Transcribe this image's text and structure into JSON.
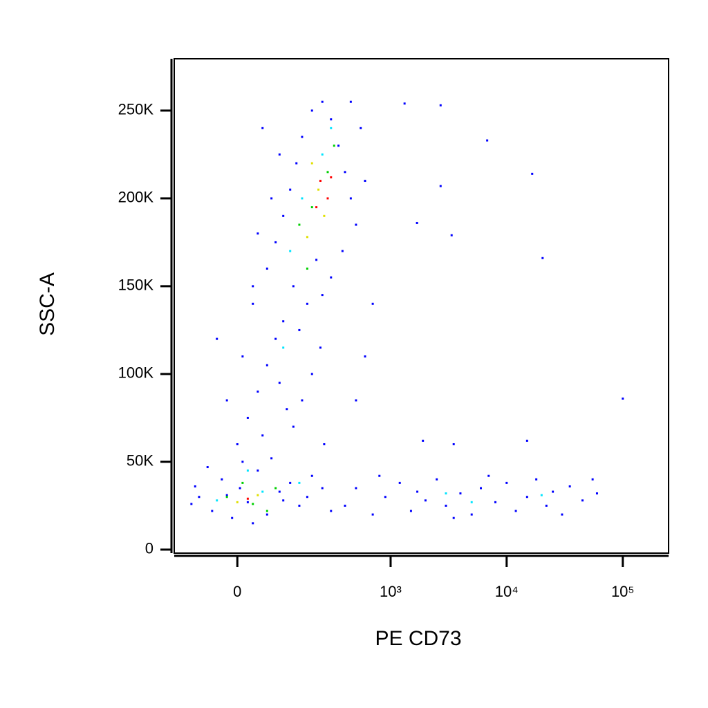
{
  "chart_data": {
    "type": "scatter",
    "x_label": "PE CD73",
    "y_label": "SSC-A",
    "xscale": "biexponential",
    "xlim": [
      -154,
      248000
    ],
    "ylim": [
      -2000,
      279500
    ],
    "xticks": [
      0,
      {
        "value": 1000,
        "label": "10³"
      },
      {
        "value": 10000,
        "label": "10⁴"
      },
      {
        "value": 100000,
        "label": "10⁵"
      }
    ],
    "yticks": [
      0,
      {
        "value": 50000,
        "label": "50K"
      },
      {
        "value": 100000,
        "label": "100K"
      },
      {
        "value": 150000,
        "label": "150K"
      },
      {
        "value": 200000,
        "label": "200K"
      },
      {
        "value": 250000,
        "label": "250K"
      }
    ],
    "series": [
      {
        "color": "#0000ff",
        "x": [
          -80,
          -50,
          -30,
          -10,
          5,
          20,
          40,
          60,
          90,
          120,
          150,
          200,
          -90,
          -60,
          30,
          70,
          100,
          -20,
          10,
          180,
          250,
          300,
          -100,
          0,
          20,
          40,
          60,
          80,
          100,
          130,
          160,
          200,
          240,
          -20,
          10,
          50,
          90,
          150,
          110,
          30,
          -40,
          260,
          180,
          60,
          80,
          100,
          120,
          140,
          160,
          200,
          250,
          300,
          350,
          400,
          450,
          500,
          380,
          300,
          250,
          70,
          90,
          40,
          30,
          550,
          600,
          450,
          130,
          220,
          50,
          400,
          500,
          700,
          900,
          1200,
          1500,
          2000,
          2500,
          3000,
          4000,
          5000,
          6000,
          8000,
          10000,
          12000,
          15000,
          18000,
          22000,
          25000,
          30000,
          35000,
          45000,
          55000,
          60000,
          800,
          1700,
          3500,
          7000,
          1320,
          2700,
          6800,
          16600,
          100000,
          20400,
          3360,
          1690,
          2700,
          1900,
          3500,
          15000,
          700,
          600,
          500
        ],
        "y": [
          30000,
          22000,
          40000,
          18000,
          35000,
          27000,
          45000,
          20000,
          33000,
          38000,
          25000,
          42000,
          36000,
          47000,
          15000,
          52000,
          28000,
          31000,
          50000,
          30000,
          35000,
          22000,
          26000,
          60000,
          75000,
          90000,
          105000,
          120000,
          130000,
          70000,
          85000,
          100000,
          115000,
          85000,
          110000,
          65000,
          95000,
          125000,
          80000,
          140000,
          120000,
          60000,
          140000,
          160000,
          175000,
          190000,
          205000,
          220000,
          235000,
          250000,
          255000,
          245000,
          230000,
          215000,
          200000,
          185000,
          170000,
          155000,
          145000,
          200000,
          225000,
          180000,
          150000,
          240000,
          210000,
          255000,
          150000,
          165000,
          240000,
          25000,
          35000,
          20000,
          30000,
          38000,
          22000,
          28000,
          40000,
          25000,
          32000,
          20000,
          35000,
          27000,
          38000,
          22000,
          30000,
          40000,
          25000,
          33000,
          20000,
          36000,
          28000,
          40000,
          32000,
          42000,
          33000,
          18000,
          42000,
          254000,
          253000,
          233000,
          214000,
          86000,
          166000,
          179000,
          186000,
          207000,
          62000,
          60000,
          62000,
          140000,
          110000,
          85000
        ]
      },
      {
        "color": "#00e5ff",
        "x": [
          -40,
          50,
          150,
          160,
          250,
          120,
          100,
          5000,
          20000,
          3000,
          300,
          20
        ],
        "y": [
          28000,
          33000,
          38000,
          200000,
          225000,
          170000,
          115000,
          27000,
          31000,
          32000,
          240000,
          45000
        ]
      },
      {
        "color": "#00d000",
        "x": [
          -20,
          30,
          80,
          200,
          280,
          150,
          320,
          60,
          180,
          10
        ],
        "y": [
          30000,
          26000,
          35000,
          195000,
          215000,
          185000,
          230000,
          22000,
          160000,
          38000
        ]
      },
      {
        "color": "#e0e000",
        "x": [
          0,
          40,
          230,
          260,
          200,
          180
        ],
        "y": [
          27000,
          31000,
          205000,
          190000,
          220000,
          178000
        ]
      },
      {
        "color": "#ff0000",
        "x": [
          20,
          240,
          280,
          220,
          300
        ],
        "y": [
          29000,
          210000,
          200000,
          195000,
          212000
        ]
      }
    ]
  }
}
